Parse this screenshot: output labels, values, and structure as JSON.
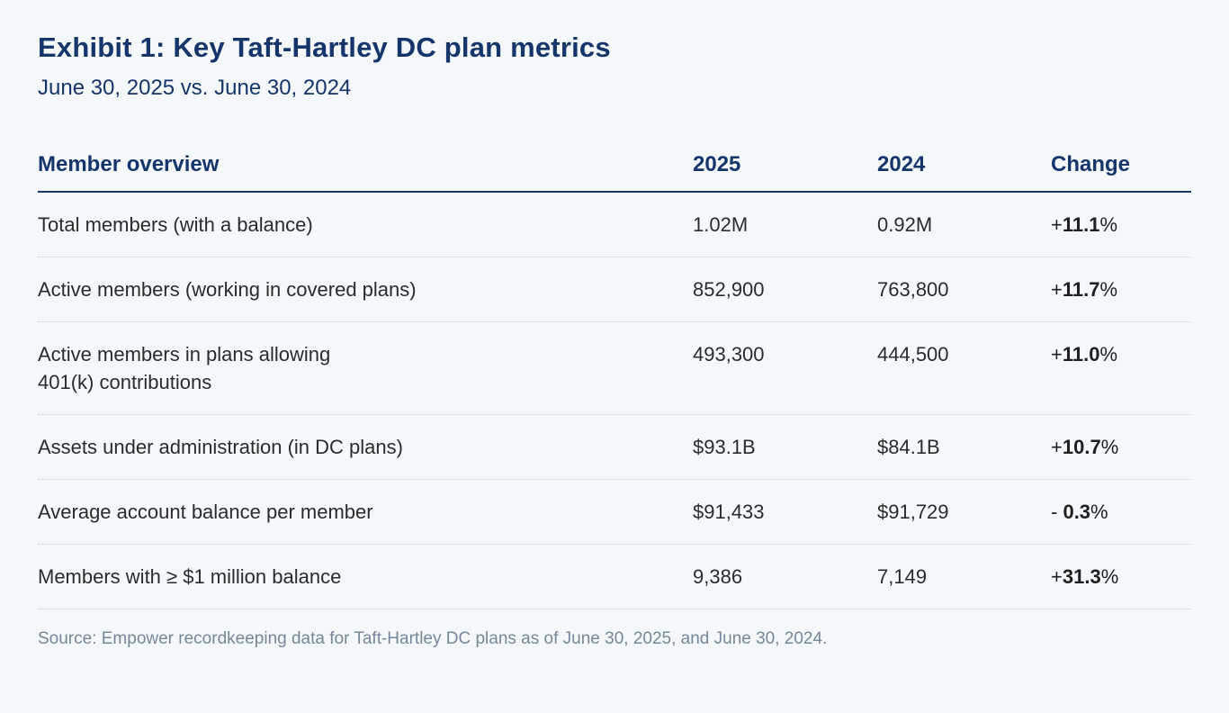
{
  "colors": {
    "background": "#f4f8fb",
    "navy": "#16356b",
    "body_text": "#2b2b2b",
    "source_text": "#76879a",
    "header_rule": "#1b3a6b",
    "row_rule_dotted": "#c6d0d9",
    "footer_rule": "#d8e0e6"
  },
  "header": {
    "title": "Exhibit 1: Key Taft-Hartley DC plan metrics",
    "subtitle": "June 30, 2025 vs. June 30, 2024"
  },
  "table": {
    "columns": {
      "c0": "Member overview",
      "c1": "2025",
      "c2": "2024",
      "c3": "Change"
    },
    "rows": [
      {
        "label": "Total members (with a balance)",
        "y2025": "1.02M",
        "y2024": "0.92M",
        "change": {
          "sign": "+",
          "value": "11.1",
          "pct": "%"
        }
      },
      {
        "label": "Active members (working in covered plans)",
        "y2025": "852,900",
        "y2024": "763,800",
        "change": {
          "sign": "+",
          "value": "11.7",
          "pct": "%"
        }
      },
      {
        "label": "Active members in plans allowing\n401(k) contributions",
        "y2025": "493,300",
        "y2024": "444,500",
        "change": {
          "sign": "+",
          "value": "11.0",
          "pct": "%"
        }
      },
      {
        "label": "Assets under administration (in DC plans)",
        "y2025": "$93.1B",
        "y2024": "$84.1B",
        "change": {
          "sign": "+",
          "value": "10.7",
          "pct": "%"
        }
      },
      {
        "label": "Average account balance per member",
        "y2025": "$91,433",
        "y2024": "$91,729",
        "change": {
          "sign": "- ",
          "value": "0.3",
          "pct": "%"
        }
      },
      {
        "label": "Members with ≥ $1 million balance",
        "y2025": "9,386",
        "y2024": "7,149",
        "change": {
          "sign": "+",
          "value": "31.3",
          "pct": "%"
        }
      }
    ]
  },
  "footer": {
    "source": "Source: Empower recordkeeping data for Taft-Hartley DC plans as of June 30, 2025, and June 30, 2024."
  },
  "chart_data": {
    "type": "table",
    "title": "Exhibit 1: Key Taft-Hartley DC plan metrics",
    "subtitle": "June 30, 2025 vs. June 30, 2024",
    "columns": [
      "Member overview",
      "2025",
      "2024",
      "Change"
    ],
    "rows": [
      [
        "Total members (with a balance)",
        "1.02M",
        "0.92M",
        "+11.1%"
      ],
      [
        "Active members (working in covered plans)",
        "852,900",
        "763,800",
        "+11.7%"
      ],
      [
        "Active members in plans allowing 401(k) contributions",
        "493,300",
        "444,500",
        "+11.0%"
      ],
      [
        "Assets under administration (in DC plans)",
        "$93.1B",
        "$84.1B",
        "+10.7%"
      ],
      [
        "Average account balance per member",
        "$91,433",
        "$91,729",
        "-0.3%"
      ],
      [
        "Members with ≥ $1 million balance",
        "9,386",
        "7,149",
        "+31.3%"
      ]
    ],
    "source": "Source: Empower recordkeeping data for Taft-Hartley DC plans as of June 30, 2025, and June 30, 2024."
  }
}
